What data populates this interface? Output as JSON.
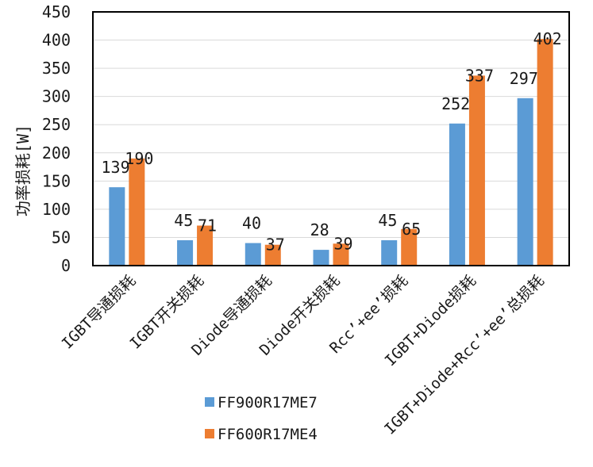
{
  "chart_data": {
    "type": "bar",
    "ylabel": "功率损耗[W]",
    "ylim": [
      0,
      450
    ],
    "yticks": [
      0,
      50,
      100,
      150,
      200,
      250,
      300,
      350,
      400,
      450
    ],
    "grid": true,
    "legend_position": "bottom",
    "categories": [
      "IGBT导通损耗",
      "IGBT开关损耗",
      "Diode导通损耗",
      "Diode开关损耗",
      "Rcc’+ee’损耗",
      "IGBT+Diode损耗",
      "IGBT+Diode+Rcc’+ee’总损耗"
    ],
    "series": [
      {
        "name": "FF900R17ME7",
        "color": "#5b9bd5",
        "values": [
          139,
          45,
          40,
          28,
          45,
          252,
          297
        ]
      },
      {
        "name": "FF600R17ME4",
        "color": "#ed7d31",
        "values": [
          190,
          71,
          37,
          39,
          65,
          337,
          402
        ]
      }
    ]
  }
}
